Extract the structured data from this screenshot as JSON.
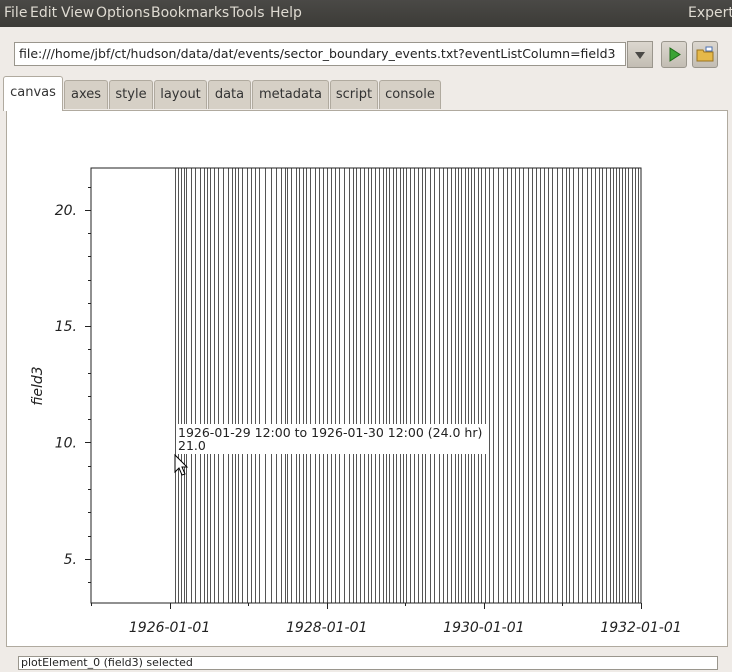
{
  "menubar": {
    "items": [
      "File",
      "Edit",
      "View",
      "Options",
      "Bookmarks",
      "Tools",
      "Help"
    ],
    "right_label": "Expert"
  },
  "toolbar": {
    "url": "file:///home/jbf/ct/hudson/data/dat/events/sector_boundary_events.txt?eventListColumn=field3"
  },
  "tabs": [
    "canvas",
    "axes",
    "style",
    "layout",
    "data",
    "metadata",
    "script",
    "console"
  ],
  "active_tab": "canvas",
  "status_text": "plotElement_0 (field3) selected",
  "tooltip": {
    "line1": "1926-01-29 12:00 to 1926-01-30 12:00 (24.0 hr)",
    "line2": "21.0"
  },
  "chart_data": {
    "type": "event-list",
    "ylabel": "field3",
    "xlabel": "",
    "yticks": [
      "5.",
      "10.",
      "15.",
      "20."
    ],
    "ytick_values": [
      5,
      10,
      15,
      20
    ],
    "ylim": [
      3.1,
      21.8
    ],
    "xticks": [
      "1926-01-01",
      "1928-01-01",
      "1930-01-01",
      "1932-01-01"
    ],
    "xtick_years": [
      1926,
      1928,
      1930,
      1932
    ],
    "xlim_years": [
      1925.0,
      1932.0
    ],
    "event_value": 21.0,
    "event_duration_hr": 24.0,
    "event_times_years": [
      1926.07,
      1926.11,
      1926.14,
      1926.18,
      1926.21,
      1926.27,
      1926.33,
      1926.39,
      1926.44,
      1926.48,
      1926.52,
      1926.57,
      1926.62,
      1926.68,
      1926.74,
      1926.79,
      1926.83,
      1926.87,
      1926.92,
      1926.98,
      1927.04,
      1927.09,
      1927.14,
      1927.21,
      1927.29,
      1927.36,
      1927.42,
      1927.47,
      1927.5,
      1927.55,
      1927.61,
      1927.65,
      1927.7,
      1927.73,
      1927.79,
      1927.85,
      1927.9,
      1927.95,
      1928.0,
      1928.05,
      1928.1,
      1928.16,
      1928.22,
      1928.28,
      1928.33,
      1928.37,
      1928.42,
      1928.47,
      1928.52,
      1928.57,
      1928.62,
      1928.67,
      1928.71,
      1928.75,
      1928.79,
      1928.84,
      1928.88,
      1928.93,
      1928.97,
      1929.01,
      1929.06,
      1929.11,
      1929.16,
      1929.21,
      1929.25,
      1929.31,
      1929.37,
      1929.43,
      1929.48,
      1929.53,
      1929.58,
      1929.63,
      1929.67,
      1929.71,
      1929.76,
      1929.8,
      1929.84,
      1929.88,
      1929.92,
      1929.96,
      1930.01,
      1930.06,
      1930.12,
      1930.18,
      1930.24,
      1930.3,
      1930.34,
      1930.39,
      1930.45,
      1930.5,
      1930.56,
      1930.61,
      1930.66,
      1930.72,
      1930.77,
      1930.82,
      1930.87,
      1930.93,
      1930.99,
      1931.04,
      1931.09,
      1931.14,
      1931.2,
      1931.25,
      1931.31,
      1931.36,
      1931.41,
      1931.46,
      1931.5,
      1931.55,
      1931.6,
      1931.64,
      1931.68,
      1931.72,
      1931.76,
      1931.8,
      1931.84,
      1931.88,
      1931.92,
      1931.96
    ]
  }
}
